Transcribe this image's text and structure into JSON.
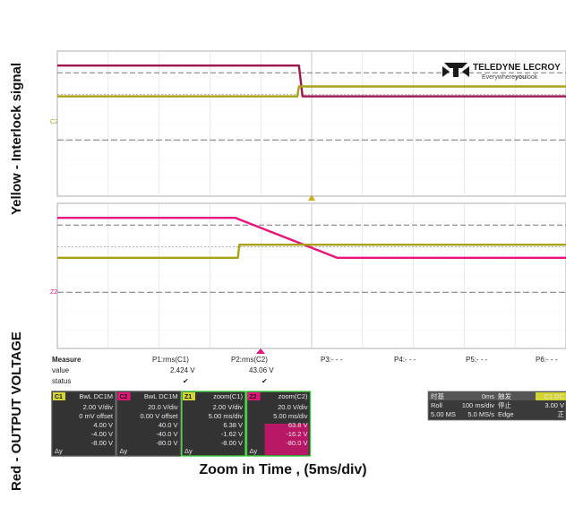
{
  "labels": {
    "left_top": "Yellow - Interlock signal",
    "left_bottom": "Red - OUTPUT VOLTAGE",
    "caption": "Zoom in Time , (5ms/div)"
  },
  "logo": {
    "brand": "TELEDYNE LECROY",
    "tagline_pre": "Everywhere",
    "tagline_bold": "you",
    "tagline_post": "look"
  },
  "markers": {
    "top_c2": "C2",
    "bot_z2": "Z2"
  },
  "measure": {
    "title": "Measure",
    "row_value": "value",
    "row_status": "status",
    "params": [
      {
        "name": "P1:rms(C1)",
        "value": "2.424 V",
        "status": "✔"
      },
      {
        "name": "P2:rms(C2)",
        "value": "43.06 V",
        "status": "✔"
      },
      {
        "name": "P3:- - -",
        "value": "",
        "status": ""
      },
      {
        "name": "P4:- - -",
        "value": "",
        "status": ""
      },
      {
        "name": "P5:- - -",
        "value": "",
        "status": ""
      },
      {
        "name": "P6:- - -",
        "value": "",
        "status": ""
      }
    ]
  },
  "channels": [
    {
      "tag": "C1",
      "badge": "BwL DC1M",
      "tag_color": "#d4d432",
      "lines": [
        "2.00 V/div",
        "0 mV offset",
        "4.00 V",
        "-4.00 V",
        "-8.00 V"
      ],
      "border": "#555555"
    },
    {
      "tag": "C2",
      "badge": "BwL DC1M",
      "tag_color": "#e8147c",
      "lines": [
        "20.0 V/div",
        "0.00 V offset",
        "40.0 V",
        "-40.0 V",
        "-80.0 V"
      ],
      "border": "#555555"
    },
    {
      "tag": "Z1",
      "badge": "zoom(C1)",
      "tag_color": "#d4d432",
      "lines": [
        "2.00 V/div",
        "5.00 ms/div",
        "6.38 V",
        "-1.62 V",
        "-8.00 V"
      ],
      "border": "#3cc83c"
    },
    {
      "tag": "Z2",
      "badge": "zoom(C2)",
      "tag_color": "#e8147c",
      "lines": [
        "20.0 V/div",
        "5.00 ms/div",
        "63.8 V",
        "-16.2 V",
        "-80.0 V"
      ],
      "border": "#3cc83c"
    }
  ],
  "timebase": {
    "header": [
      "时基",
      "0ms",
      "触发",
      "C1 DC"
    ],
    "row2": [
      "Roll",
      "100 ms/div",
      "停止",
      "3.00 V"
    ],
    "row3": [
      "5.00 MS",
      "5.0 MS/s",
      "Edge",
      "正"
    ]
  },
  "chart_data": [
    {
      "type": "line",
      "panel": "top",
      "x_unit": "div",
      "xlim": [
        0,
        10
      ],
      "ylim": [
        -4,
        4
      ],
      "series": [
        {
          "color": "#a0144e",
          "x": [
            0,
            4.75,
            4.82,
            10
          ],
          "y": [
            3.2,
            3.2,
            1.5,
            1.5
          ]
        },
        {
          "color": "#a8a214",
          "x": [
            0,
            4.72,
            4.75,
            10
          ],
          "y": [
            1.5,
            1.5,
            2.05,
            2.05
          ]
        }
      ]
    },
    {
      "type": "line",
      "panel": "bottom",
      "x_unit": "div",
      "xlim": [
        0,
        10
      ],
      "ylim": [
        -4,
        4
      ],
      "series": [
        {
          "color": "#e8147c",
          "x": [
            0,
            3.5,
            5.5,
            10
          ],
          "y": [
            3.2,
            3.2,
            1.0,
            1.0
          ]
        },
        {
          "color": "#a8a214",
          "x": [
            0,
            3.55,
            3.58,
            10
          ],
          "y": [
            1.0,
            1.0,
            1.72,
            1.72
          ]
        }
      ]
    }
  ]
}
